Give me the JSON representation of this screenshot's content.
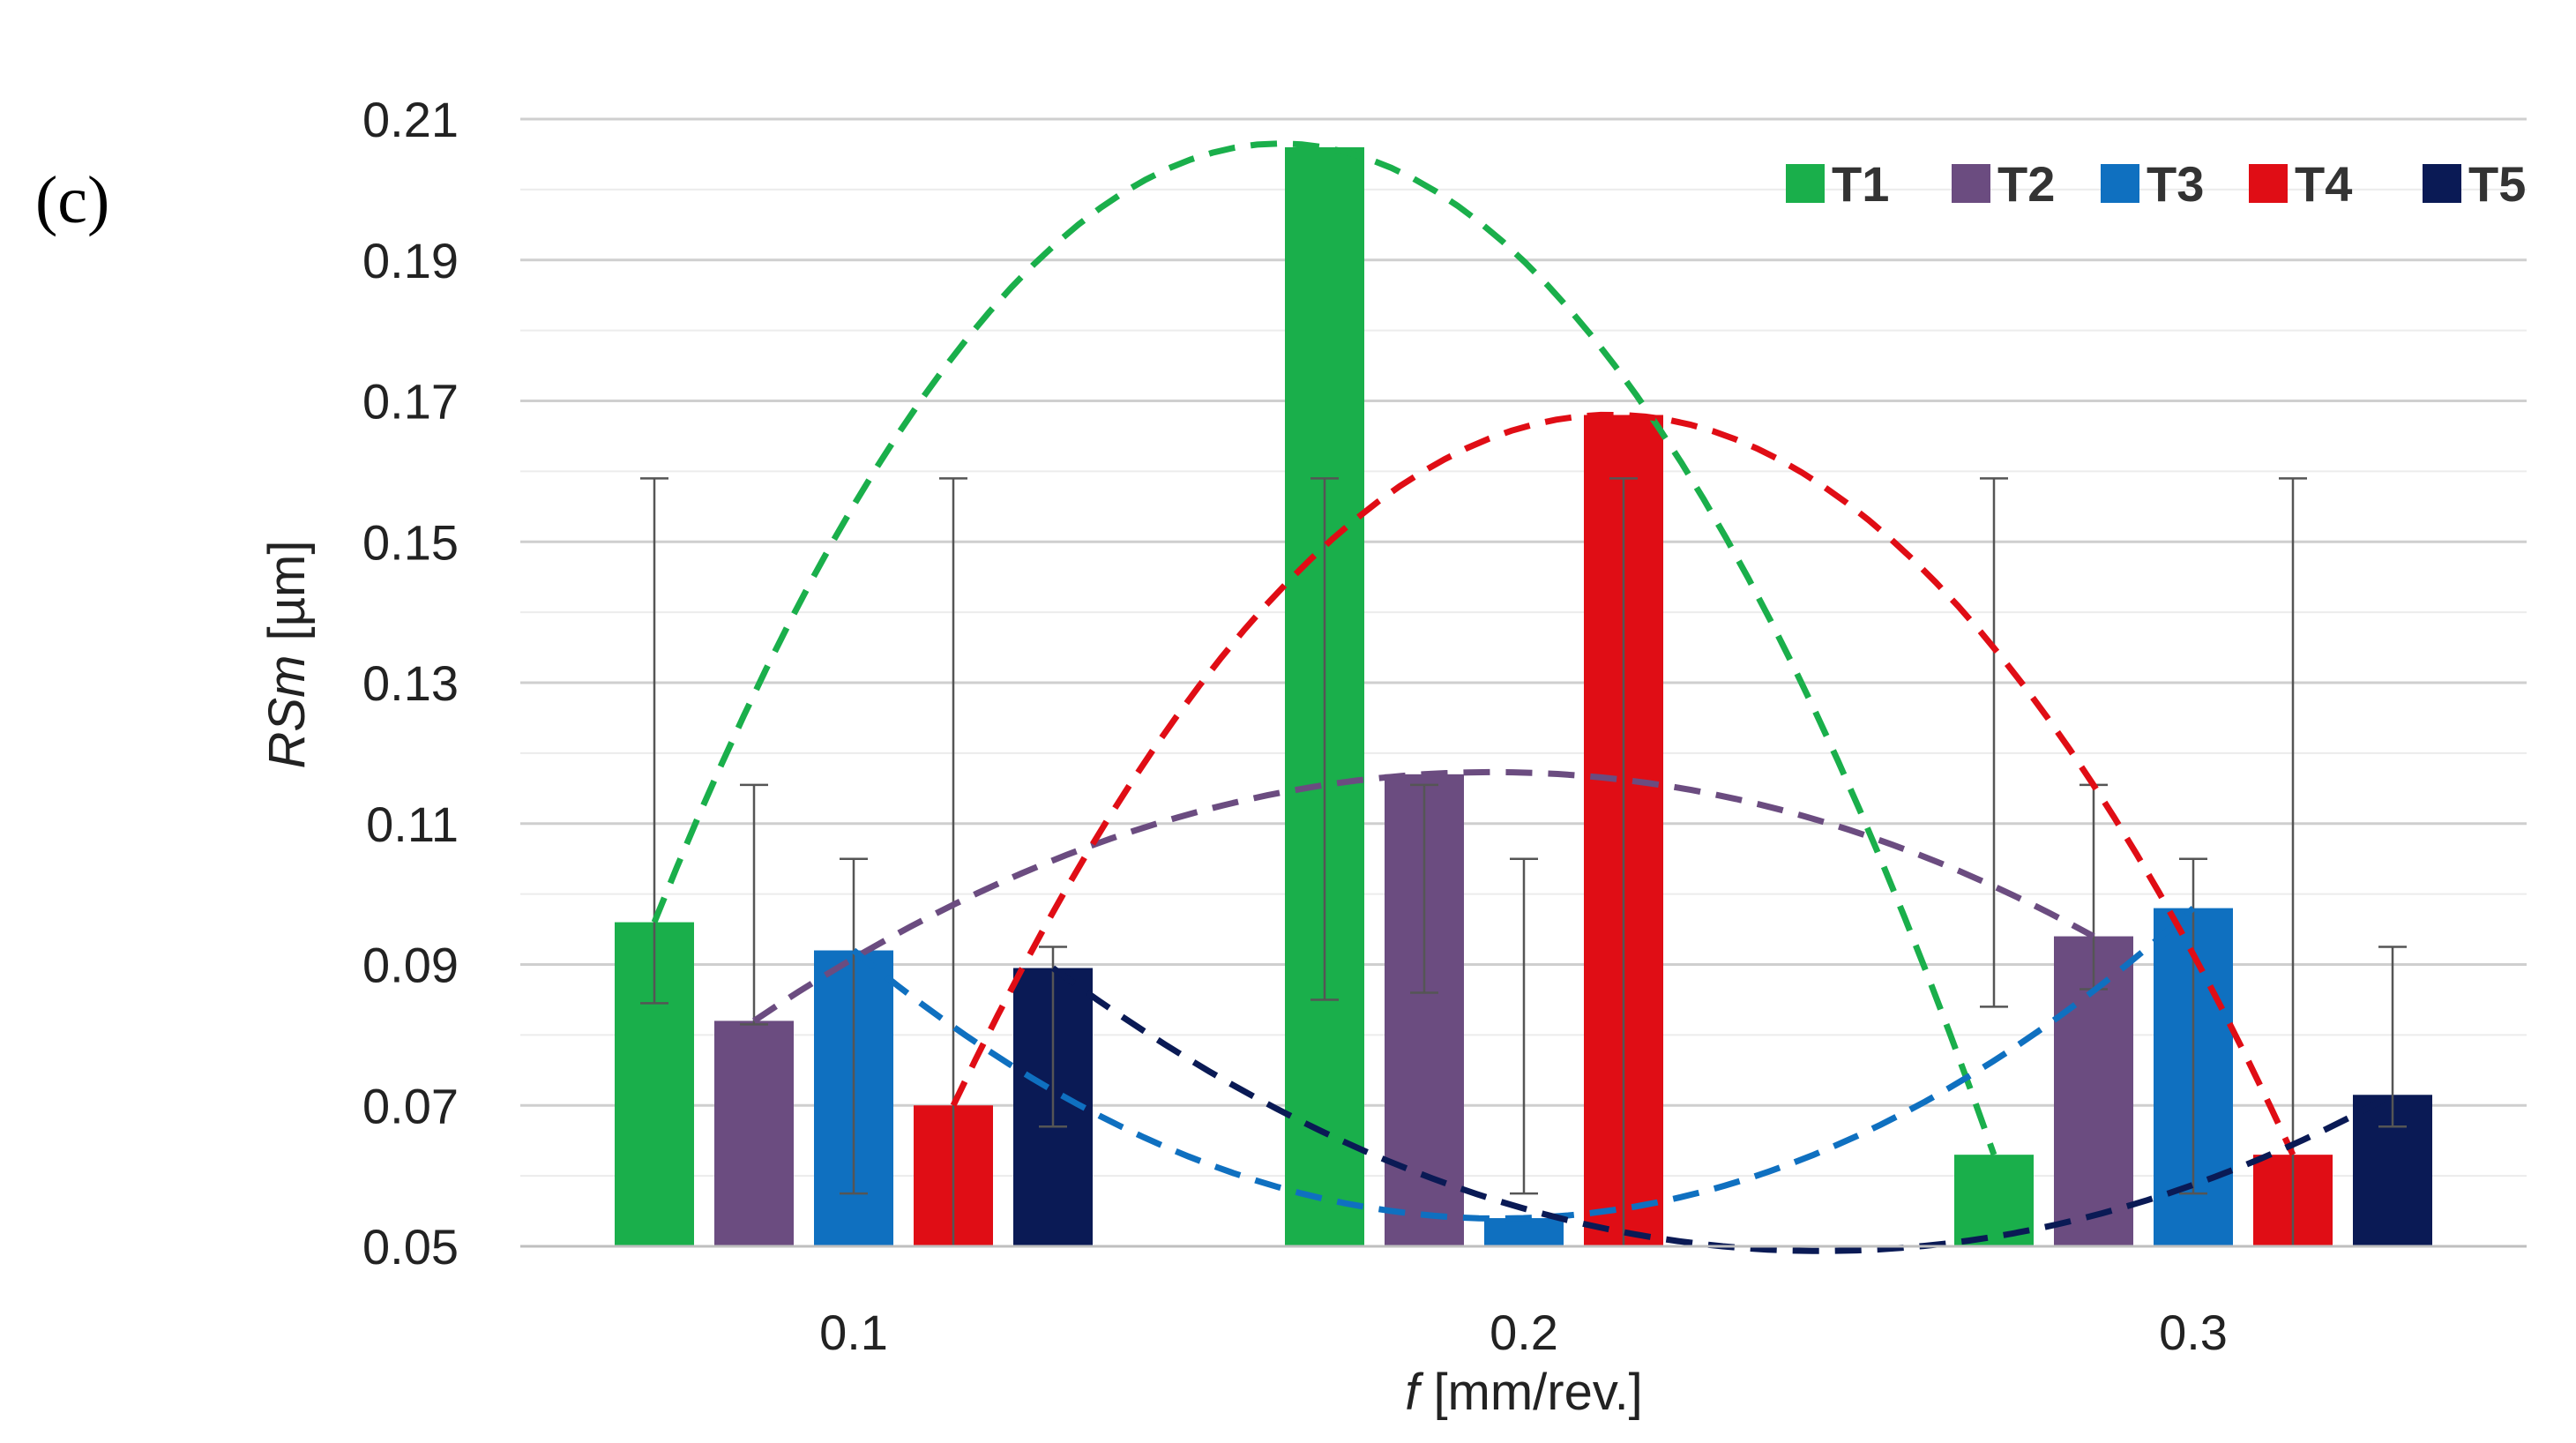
{
  "panel_label": "(c)",
  "chart_data": {
    "type": "bar",
    "title": "",
    "xlabel_italic": "f",
    "xlabel_rest": " [mm/rev.]",
    "ylabel_italic": "RSm",
    "ylabel_rest": " [µm]",
    "ylim": [
      0.05,
      0.21
    ],
    "yticks": [
      0.05,
      0.07,
      0.09,
      0.11,
      0.13,
      0.15,
      0.17,
      0.19,
      0.21
    ],
    "ytick_labels": [
      "0.05",
      "0.07",
      "0.09",
      "0.11",
      "0.13",
      "0.15",
      "0.17",
      "0.19",
      "0.21"
    ],
    "minor_grid_step": 0.01,
    "categories": [
      "0.1",
      "0.2",
      "0.3"
    ],
    "legend_position": "top-right",
    "series": [
      {
        "name": "T1",
        "color": "#1aaf4b",
        "values": [
          0.096,
          0.206,
          0.063
        ],
        "err_low": [
          0.0845,
          0.085,
          0.084
        ],
        "err_high": [
          0.159,
          0.159,
          0.159
        ]
      },
      {
        "name": "T2",
        "color": "#6b4c80",
        "values": [
          0.082,
          0.117,
          0.094
        ],
        "err_low": [
          0.0815,
          0.086,
          0.0865
        ],
        "err_high": [
          0.1155,
          0.1155,
          0.1155
        ]
      },
      {
        "name": "T3",
        "color": "#0f70c0",
        "values": [
          0.092,
          0.054,
          0.098
        ],
        "err_low": [
          0.0575,
          0.0575,
          0.0575
        ],
        "err_high": [
          0.105,
          0.105,
          0.105
        ]
      },
      {
        "name": "T4",
        "color": "#e00d15",
        "values": [
          0.07,
          0.168,
          0.063
        ],
        "err_low": [
          0.05,
          0.05,
          0.05
        ],
        "err_high": [
          0.159,
          0.159,
          0.159
        ]
      },
      {
        "name": "T5",
        "color": "#0a1a55",
        "values": [
          0.0895,
          0.05,
          0.0715
        ],
        "err_low": [
          0.067,
          0.05,
          0.067
        ],
        "err_high": [
          0.0925,
          0.05,
          0.0925
        ]
      }
    ]
  }
}
